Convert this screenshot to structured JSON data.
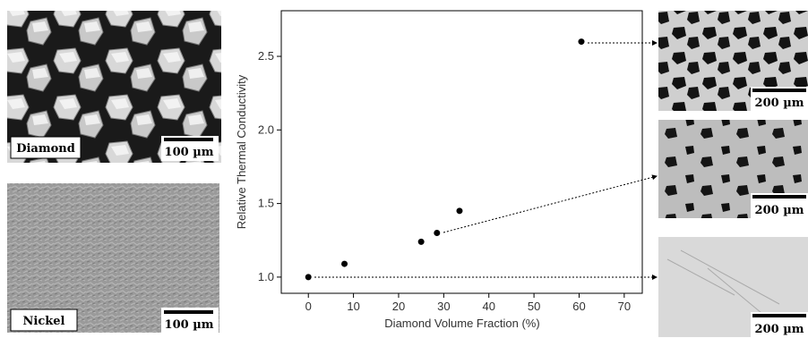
{
  "chart_data": {
    "type": "scatter",
    "x_label": "Diamond Volume Fraction (%)",
    "y_label": "Relative Thermal Conductivity",
    "x": [
      0,
      8,
      25,
      28.5,
      33.5,
      60.5
    ],
    "values": [
      1.0,
      1.09,
      1.24,
      1.3,
      1.45,
      2.6
    ],
    "color": "#000000",
    "xlim": [
      -6,
      74
    ],
    "ylim": [
      0.89,
      2.81
    ],
    "xticks": [
      0,
      10,
      20,
      30,
      40,
      50,
      60,
      70
    ],
    "yticks": [
      {
        "value": 1,
        "label": "1.0"
      },
      1.5,
      {
        "value": 2,
        "label": "2.0"
      },
      2.5
    ]
  },
  "images": {
    "left_top": {
      "label": "Diamond",
      "scale": "100 µm"
    },
    "left_bottom": {
      "label": "Nickel",
      "scale": "100 µm"
    },
    "right_top": {
      "scale": "200 µm"
    },
    "right_middle": {
      "scale": "200 µm"
    },
    "right_bottom": {
      "scale": "200 µm"
    }
  }
}
